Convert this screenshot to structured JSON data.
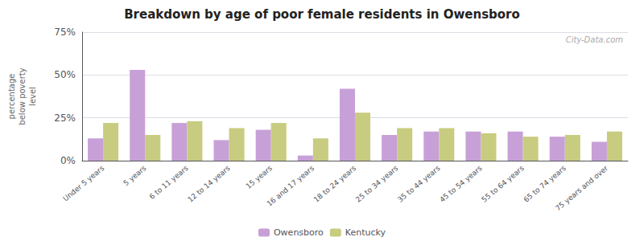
{
  "chart_data": {
    "type": "bar",
    "title": "Breakdown by age of poor female residents in Owensboro",
    "ylabel": "percentage\nbelow poverty\nlevel",
    "annotation": "City-Data.com",
    "categories": [
      "Under 5 years",
      "5 years",
      "6 to 11 years",
      "12 to 14 years",
      "15 years",
      "16 and 17 years",
      "18 to 24 years",
      "25 to 34 years",
      "35 to 44 years",
      "45 to 54 years",
      "55 to 64 years",
      "65 to 74 years",
      "75 years and over"
    ],
    "series": [
      {
        "name": "Owensboro",
        "color": "#c8a0d8",
        "values": [
          13,
          53,
          22,
          12,
          18,
          3,
          42,
          15,
          17,
          17,
          17,
          14,
          11
        ]
      },
      {
        "name": "Kentucky",
        "color": "#c8cc80",
        "values": [
          22,
          15,
          23,
          19,
          22,
          13,
          28,
          19,
          19,
          16,
          14,
          15,
          17
        ]
      }
    ],
    "ylim": [
      0,
      75
    ],
    "yticks": [
      {
        "value": 0,
        "label": "0%"
      },
      {
        "value": 25,
        "label": "25%"
      },
      {
        "value": 50,
        "label": "50%"
      },
      {
        "value": 75,
        "label": "75%"
      }
    ],
    "grid": true,
    "legend": "bottom"
  }
}
